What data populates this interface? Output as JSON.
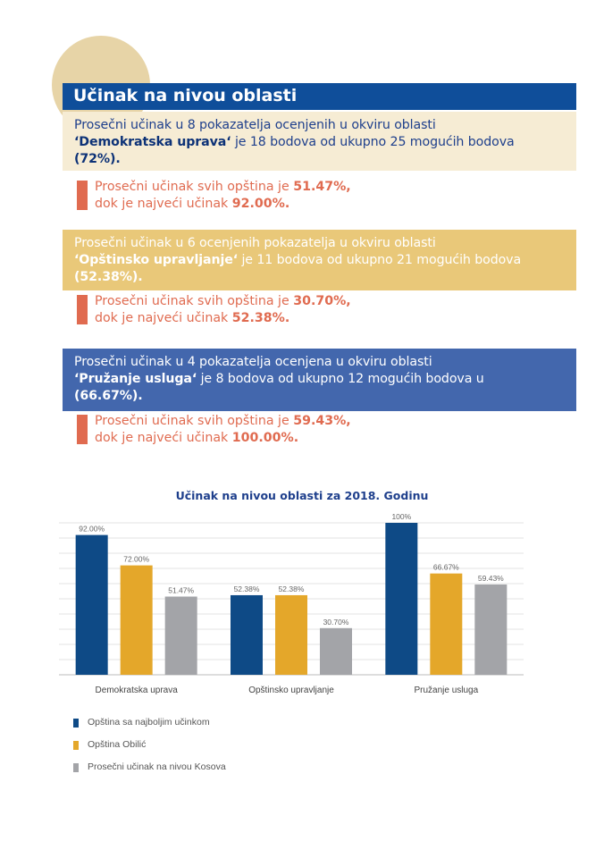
{
  "header": {
    "title": "Učinak na nivou oblasti"
  },
  "areas": [
    {
      "intro": "Prosečni učinak u 8 pokazatelja ocenjenih u okviru oblasti",
      "name": "‘Demokratska uprava‘",
      "middle": " je 18 bodova od ukupno 25 mogućih bodova",
      "percent": "(72%).",
      "stat_prefix": "Prosečni učinak svih opština je ",
      "stat_avg": "51.47%,",
      "stat_max_prefix": "dok je najveći učinak ",
      "stat_max": "92.00%."
    },
    {
      "intro": "Prosečni učinak u 6 ocenjenih pokazatelja u okviru oblasti",
      "name": "‘Opštinsko upravljanje‘",
      "middle": " je 11 bodova od ukupno 21 mogućih bodova",
      "percent": "(52.38%).",
      "stat_prefix": "Prosečni učinak svih opština je ",
      "stat_avg": "30.70%,",
      "stat_max_prefix": "dok je najveći učinak ",
      "stat_max": "52.38%."
    },
    {
      "intro": "Prosečni učinak u 4 pokazatelja ocenjena u okviru oblasti",
      "name": "‘Pružanje usluga‘",
      "middle": " je 8 bodova od ukupno 12 mogućih bodova u",
      "percent": "(66.67%).",
      "stat_prefix": "Prosečni učinak svih opština je ",
      "stat_avg": "59.43%,",
      "stat_max_prefix": "dok je najveći učinak ",
      "stat_max": "100.00%."
    }
  ],
  "colors": {
    "header_blue": "#0f4e9a",
    "accent_red": "#e06b50",
    "series_blue": "#0e4a86",
    "series_gold": "#e4a72a",
    "series_gray": "#a3a4a8"
  },
  "chart_data": {
    "type": "bar",
    "title": "Učinak na nivou oblasti za 2018. Godinu",
    "categories": [
      "Demokratska uprava",
      "Opštinsko upravljanje",
      "Pružanje usluga"
    ],
    "series": [
      {
        "name": "Opština sa najboljim učinkom",
        "values": [
          92.0,
          52.38,
          100
        ],
        "labels": [
          "92.00%",
          "52.38%",
          "100%"
        ],
        "color": "#0e4a86"
      },
      {
        "name": "Opština Obilić",
        "values": [
          72.0,
          52.38,
          66.67
        ],
        "labels": [
          "72.00%",
          "52.38%",
          "66.67%"
        ],
        "color": "#e4a72a"
      },
      {
        "name": "Prosečni učinak na nivou Kosova",
        "values": [
          51.47,
          30.7,
          59.43
        ],
        "labels": [
          "51.47%",
          "30.70%",
          "59.43%"
        ],
        "color": "#a3a4a8"
      }
    ],
    "ylim": [
      0,
      100
    ],
    "grid": true,
    "legend": "bottom-left"
  }
}
